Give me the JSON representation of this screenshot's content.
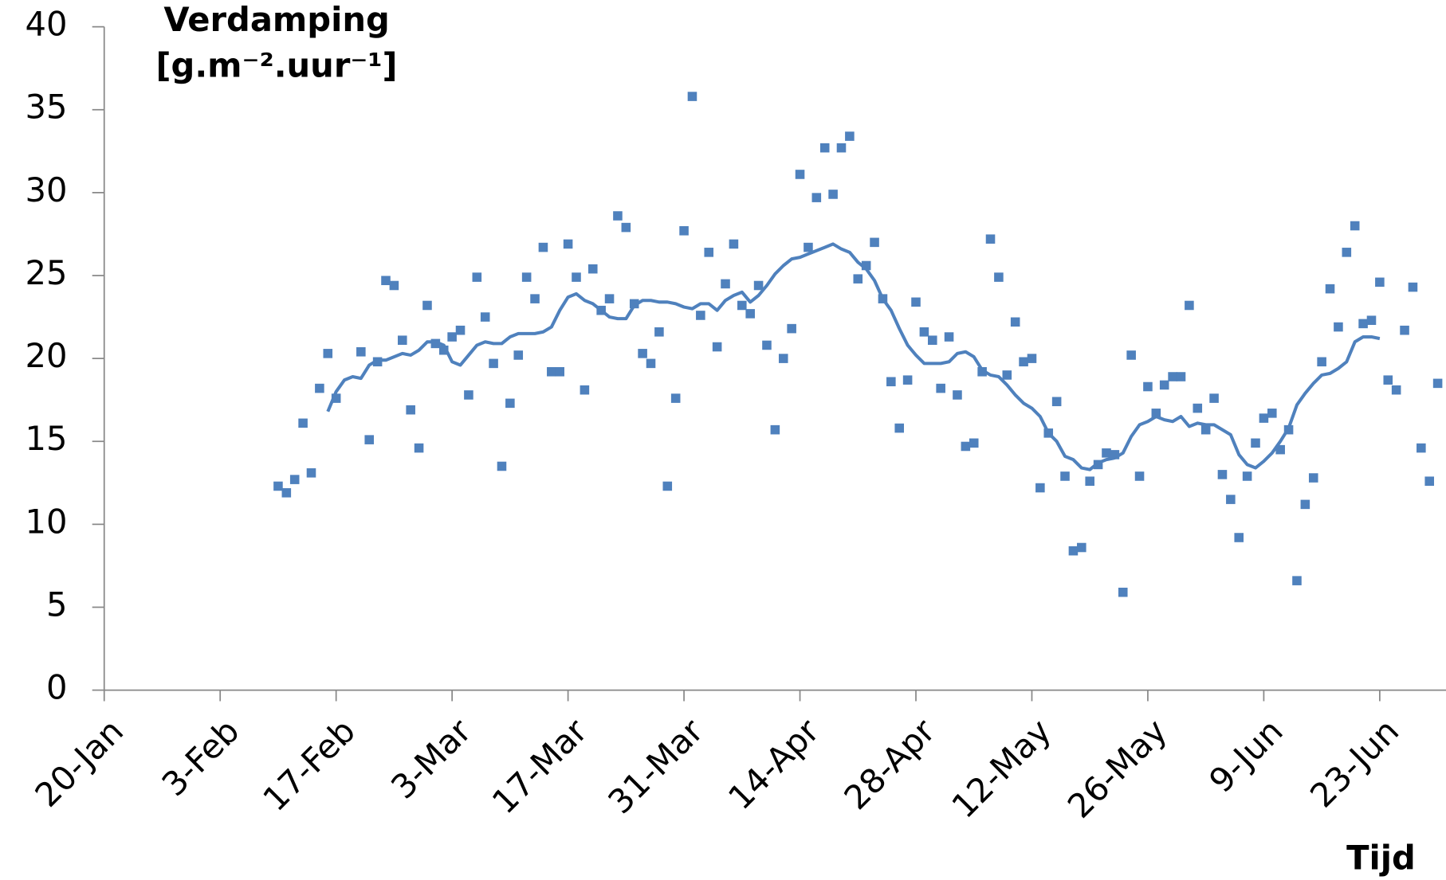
{
  "chart_data": {
    "type": "scatter",
    "ylabel": [
      "Verdamping",
      "[g.m⁻².uur⁻¹]"
    ],
    "xlabel": "Tijd",
    "color": "#4f81bd",
    "xlim": [
      0,
      162
    ],
    "ylim": [
      0,
      40
    ],
    "yticks": [
      0,
      5,
      10,
      15,
      20,
      25,
      30,
      35,
      40
    ],
    "xticks": [
      {
        "value": 0,
        "label": "20-Jan"
      },
      {
        "value": 14,
        "label": "3-Feb"
      },
      {
        "value": 28,
        "label": "17-Feb"
      },
      {
        "value": 42,
        "label": "3-Mar"
      },
      {
        "value": 56,
        "label": "17-Mar"
      },
      {
        "value": 70,
        "label": "31-Mar"
      },
      {
        "value": 84,
        "label": "14-Apr"
      },
      {
        "value": 98,
        "label": "28-Apr"
      },
      {
        "value": 112,
        "label": "12-May"
      },
      {
        "value": 126,
        "label": "26-May"
      },
      {
        "value": 140,
        "label": "9-Jun"
      },
      {
        "value": 154,
        "label": "23-Jun"
      }
    ],
    "x": [
      21,
      22,
      23,
      24,
      25,
      26,
      27,
      28,
      31,
      32,
      33,
      34,
      35,
      36,
      37,
      38,
      39,
      40,
      41,
      42,
      43,
      44,
      45,
      46,
      47,
      48,
      49,
      50,
      51,
      52,
      53,
      54,
      55,
      56,
      57,
      58,
      59,
      60,
      61,
      62,
      63,
      64,
      65,
      66,
      67,
      68,
      69,
      70,
      71,
      72,
      73,
      74,
      75,
      76,
      77,
      78,
      79,
      80,
      81,
      82,
      83,
      84,
      85,
      86,
      87,
      88,
      89,
      90,
      91,
      92,
      93,
      94,
      95,
      96,
      97,
      98,
      99,
      100,
      101,
      102,
      103,
      104,
      105,
      106,
      107,
      108,
      109,
      110,
      111,
      112,
      113,
      114,
      115,
      116,
      117,
      118,
      119,
      120,
      121,
      122,
      123,
      124,
      125,
      126,
      127,
      128,
      129,
      130,
      131,
      132,
      133,
      134,
      135,
      136,
      137,
      138,
      139,
      140,
      141,
      142,
      143,
      144,
      145,
      146,
      147,
      148,
      149,
      150,
      151,
      152,
      153,
      154,
      155,
      156,
      157,
      158,
      159,
      160,
      161
    ],
    "values": [
      12.3,
      11.9,
      12.7,
      16.1,
      13.1,
      18.2,
      20.3,
      17.6,
      20.4,
      15.1,
      19.8,
      24.7,
      24.4,
      21.1,
      16.9,
      14.6,
      23.2,
      20.9,
      20.5,
      21.3,
      21.7,
      17.8,
      24.9,
      22.5,
      19.7,
      13.5,
      17.3,
      20.2,
      24.9,
      23.6,
      26.7,
      19.2,
      19.2,
      26.9,
      24.9,
      18.1,
      25.4,
      22.9,
      23.6,
      28.6,
      27.9,
      23.3,
      20.3,
      19.7,
      21.6,
      12.3,
      17.6,
      27.7,
      35.8,
      22.6,
      26.4,
      20.7,
      24.5,
      26.9,
      23.2,
      22.7,
      24.4,
      20.8,
      15.7,
      20.0,
      21.8,
      31.1,
      26.7,
      29.7,
      32.7,
      29.9,
      32.7,
      33.4,
      24.8,
      25.6,
      27.0,
      23.6,
      18.6,
      15.8,
      18.7,
      23.4,
      21.6,
      21.1,
      18.2,
      21.3,
      17.8,
      14.7,
      14.9,
      19.2,
      27.2,
      24.9,
      19.0,
      22.2,
      19.8,
      20.0,
      12.2,
      15.5,
      17.4,
      12.9,
      8.4,
      8.6,
      12.6,
      13.6,
      14.3,
      14.2,
      5.9,
      20.2,
      12.9,
      18.3,
      16.7,
      18.4,
      18.9,
      18.9,
      23.2,
      17.0,
      15.7,
      17.6,
      13.0,
      11.5,
      9.2,
      12.9,
      14.9,
      16.4,
      16.7,
      14.5,
      15.7,
      6.6,
      11.2,
      12.8,
      19.8,
      24.2,
      21.9,
      26.4,
      28.0,
      22.1,
      22.3,
      24.6,
      18.7,
      18.1,
      21.7,
      24.3,
      14.6,
      12.6,
      18.5
    ],
    "trend": {
      "x": [
        27,
        28,
        29,
        30,
        31,
        32,
        33,
        34,
        36,
        37,
        38,
        39,
        40,
        41,
        42,
        43,
        44,
        45,
        46,
        47,
        48,
        49,
        50,
        52,
        53,
        54,
        55,
        56,
        57,
        58,
        59,
        60,
        61,
        62,
        63,
        64,
        65,
        66,
        67,
        68,
        69,
        70,
        71,
        72,
        73,
        74,
        75,
        76,
        77,
        78,
        79,
        80,
        81,
        82,
        83,
        84,
        85,
        86,
        87,
        88,
        89,
        90,
        91,
        92,
        93,
        94,
        95,
        96,
        97,
        98,
        99,
        101,
        102,
        103,
        104,
        105,
        106,
        107,
        108,
        109,
        110,
        111,
        112,
        113,
        114,
        115,
        116,
        117,
        118,
        119,
        120,
        121,
        122,
        123,
        124,
        125,
        126,
        127,
        128,
        129,
        130,
        131,
        132,
        133,
        134,
        135,
        136,
        137,
        138,
        139,
        140,
        141,
        142,
        143,
        144,
        145,
        146,
        147,
        148,
        149,
        150,
        151,
        152,
        153,
        154
      ],
      "values": [
        16.8,
        18.0,
        18.7,
        18.9,
        18.8,
        19.6,
        19.9,
        19.9,
        20.3,
        20.2,
        20.5,
        21.0,
        21.0,
        20.8,
        19.8,
        19.6,
        20.2,
        20.8,
        21.0,
        20.9,
        20.9,
        21.3,
        21.5,
        21.5,
        21.6,
        21.9,
        22.9,
        23.7,
        23.9,
        23.5,
        23.3,
        22.9,
        22.5,
        22.4,
        22.4,
        23.2,
        23.5,
        23.5,
        23.4,
        23.4,
        23.3,
        23.1,
        23.0,
        23.3,
        23.3,
        22.9,
        23.5,
        23.8,
        24.0,
        23.4,
        23.8,
        24.4,
        25.1,
        25.6,
        26.0,
        26.1,
        26.3,
        26.5,
        26.7,
        26.9,
        26.6,
        26.4,
        25.8,
        25.4,
        24.7,
        23.6,
        22.9,
        21.8,
        20.8,
        20.2,
        19.7,
        19.7,
        19.8,
        20.3,
        20.4,
        20.1,
        19.3,
        19.0,
        18.9,
        18.4,
        17.8,
        17.3,
        17.0,
        16.5,
        15.5,
        15.0,
        14.1,
        13.9,
        13.4,
        13.3,
        13.7,
        13.9,
        14.0,
        14.3,
        15.3,
        16.0,
        16.2,
        16.5,
        16.3,
        16.2,
        16.5,
        15.9,
        16.1,
        16.0,
        16.0,
        15.7,
        15.4,
        14.2,
        13.6,
        13.4,
        13.8,
        14.3,
        15.0,
        15.8,
        17.2,
        17.9,
        18.5,
        19.0,
        19.1,
        19.4,
        19.8,
        21.0,
        21.3,
        21.3,
        21.2
      ]
    }
  }
}
